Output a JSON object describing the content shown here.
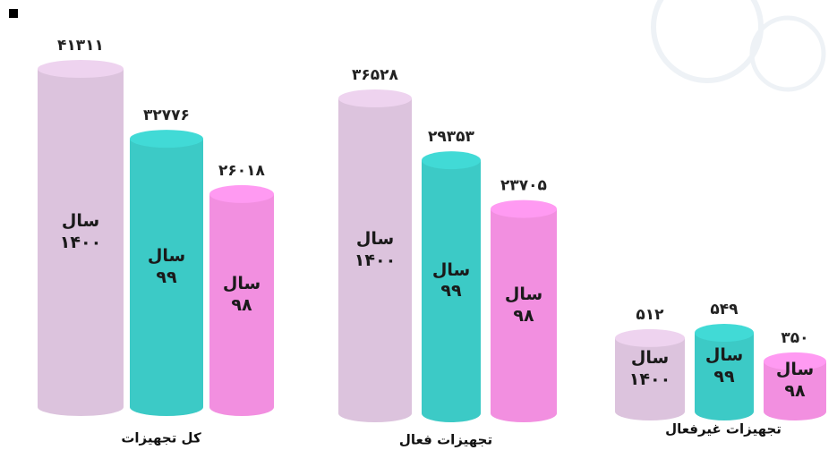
{
  "chart_data": {
    "type": "bar",
    "categories": [
      "کل تجهیزات",
      "تجهیزات فعال",
      "تجهیزات غیرفعال"
    ],
    "series": [
      {
        "name": "سال ۱۴۰۰",
        "color": "#dcc3dd",
        "values": [
          41311,
          36528,
          512
        ],
        "value_labels": [
          "۴۱۳۱۱",
          "۳۶۵۲۸",
          "۵۱۲"
        ]
      },
      {
        "name": "سال ۹۹",
        "color": "#3ccac6",
        "values": [
          32776,
          29353,
          549
        ],
        "value_labels": [
          "۳۲۷۷۶",
          "۲۹۳۵۳",
          "۵۴۹"
        ]
      },
      {
        "name": "سال ۹۸",
        "color": "#f28fe0",
        "values": [
          26018,
          23705,
          350
        ],
        "value_labels": [
          "۲۶۰۱۸",
          "۲۳۷۰۵",
          "۳۵۰"
        ]
      }
    ]
  }
}
